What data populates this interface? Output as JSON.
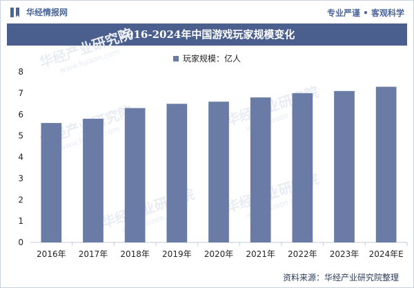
{
  "header": {
    "brand_name": "华经情报网",
    "slogan": "专业严谨 • 客观科学",
    "brand_icon": "bookmark-bars-icon"
  },
  "title": "2016-2024年中国游戏玩家规模变化",
  "legend": {
    "label": "玩家规模：亿人"
  },
  "footer": {
    "source": "资料来源：华经产业研究院整理"
  },
  "watermark": {
    "text": "华经产业研究院",
    "url": "www.huaon.com"
  },
  "colors": {
    "bar": "#6a7ca5",
    "title_bg": "#4b5f8f",
    "brand": "#4a6597"
  },
  "chart_data": {
    "type": "bar",
    "categories": [
      "2016年",
      "2017年",
      "2018年",
      "2019年",
      "2020年",
      "2021年",
      "2022年",
      "2023年",
      "2024年E"
    ],
    "series": [
      {
        "name": "玩家规模：亿人",
        "values": [
          5.6,
          5.8,
          6.3,
          6.5,
          6.6,
          6.8,
          7.0,
          7.1,
          7.3
        ]
      }
    ],
    "ylim": [
      0,
      8
    ],
    "yticks": [
      0,
      1,
      2,
      3,
      4,
      5,
      6,
      7,
      8
    ],
    "grid": false,
    "legend_position": "top-center"
  }
}
